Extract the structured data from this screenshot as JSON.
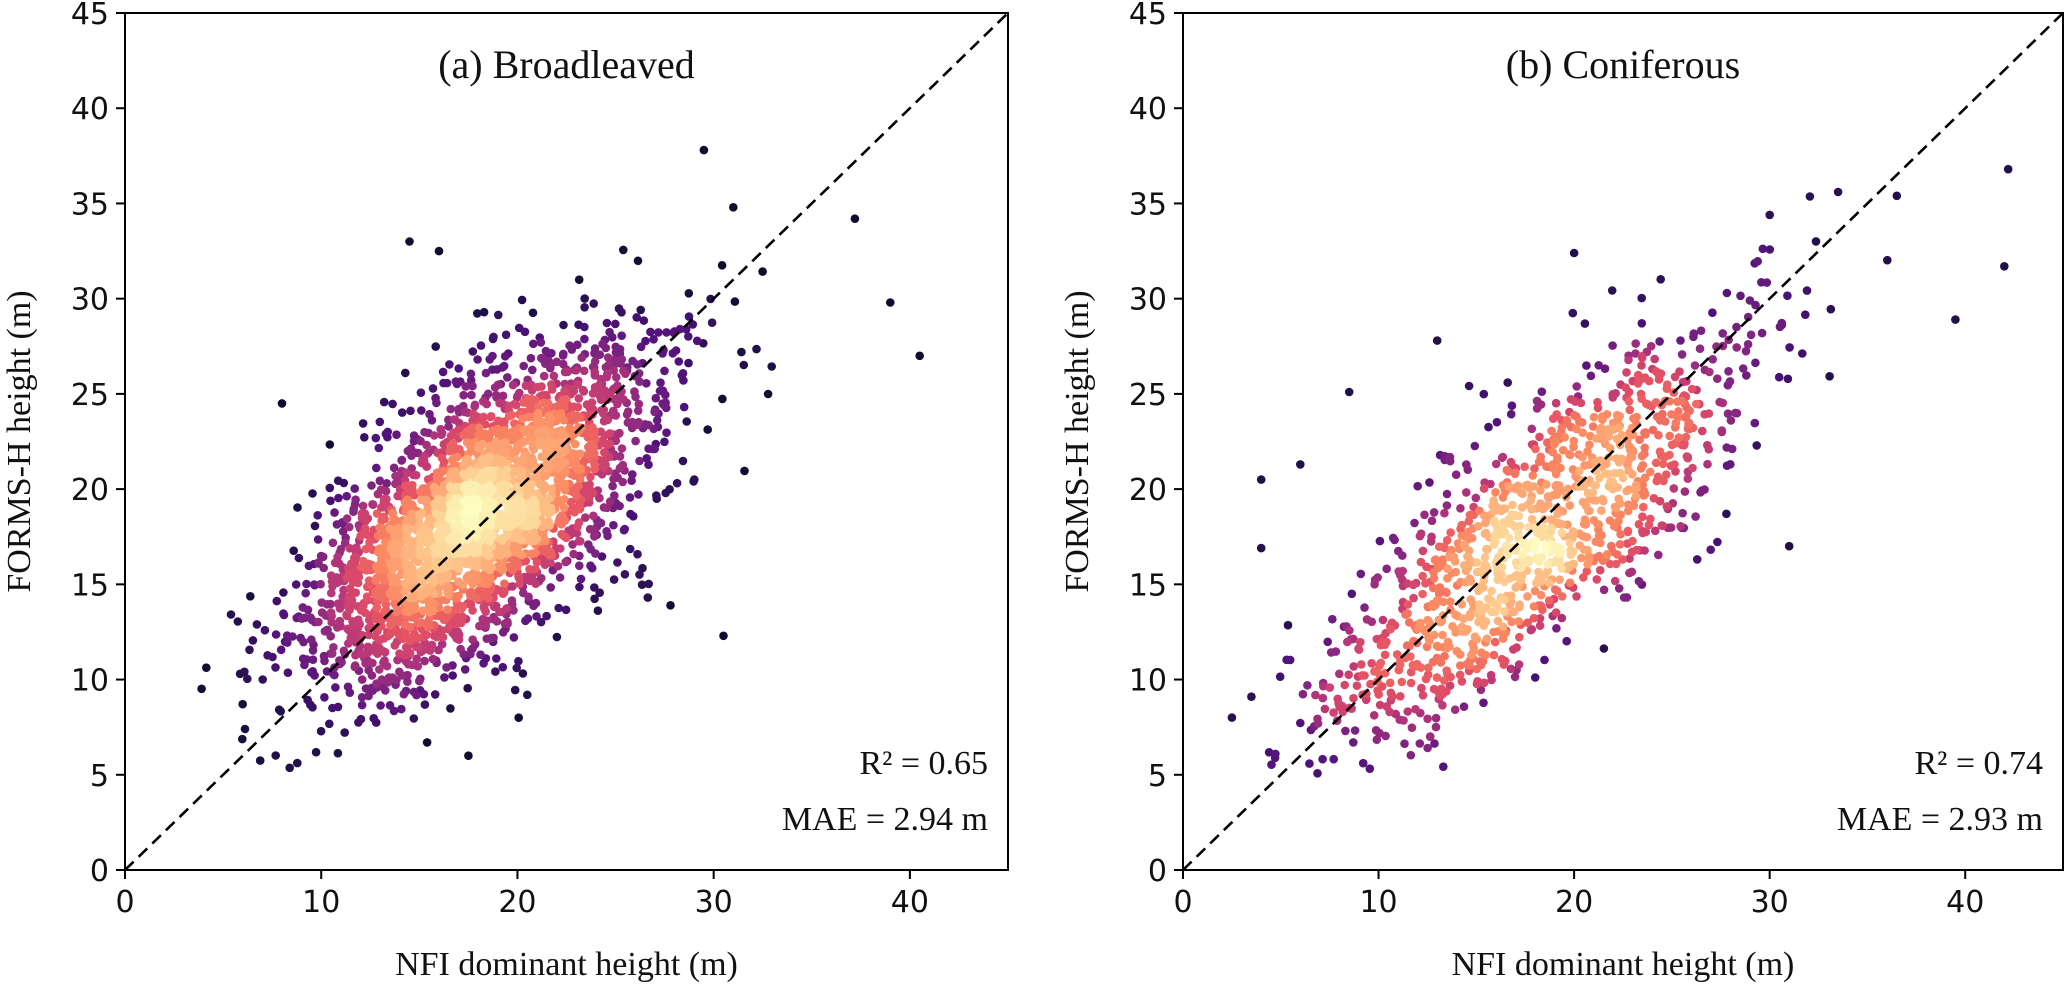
{
  "chart_data": [
    {
      "type": "scatter",
      "title": "(a)  Broadleaved",
      "xlabel": "NFI dominant height (m)",
      "ylabel": "FORMS-H height (m)",
      "xlim": [
        0,
        45
      ],
      "ylim": [
        0,
        45
      ],
      "xticks": [
        "0",
        "10",
        "20",
        "30",
        "40"
      ],
      "yticks": [
        "0",
        "5",
        "10",
        "15",
        "20",
        "25",
        "30",
        "35",
        "40",
        "45"
      ],
      "reference_line": "1:1 dashed",
      "colormap": "magma (point density)",
      "stats": [
        "R² = 0.65",
        "MAE = 2.94 m"
      ],
      "points_sampled": {
        "count": 3000,
        "center": [
          18,
          18.5
        ],
        "spread_major": 5.6,
        "spread_minor": 2.6,
        "x_range": [
          3,
          41
        ],
        "y_range": [
          5,
          38
        ]
      },
      "outliers": [
        [
          29.5,
          37.8
        ],
        [
          31,
          34.8
        ],
        [
          14.5,
          33
        ],
        [
          16,
          32.5
        ],
        [
          37.2,
          34.2
        ],
        [
          40.5,
          27
        ],
        [
          39,
          29.8
        ],
        [
          30.5,
          12.3
        ],
        [
          27.8,
          13.9
        ],
        [
          8,
          24.5
        ],
        [
          17.5,
          6
        ],
        [
          20.5,
          9.2
        ]
      ]
    },
    {
      "type": "scatter",
      "title": "(b)  Coniferous",
      "xlabel": "NFI dominant height (m)",
      "ylabel": "FORMS-H height (m)",
      "xlim": [
        0,
        45
      ],
      "ylim": [
        0,
        45
      ],
      "xticks": [
        "0",
        "10",
        "20",
        "30",
        "40"
      ],
      "yticks": [
        "0",
        "5",
        "10",
        "15",
        "20",
        "25",
        "30",
        "35",
        "40",
        "45"
      ],
      "reference_line": "1:1 dashed",
      "colormap": "magma (point density)",
      "stats": [
        "R² = 0.74",
        "MAE = 2.93 m"
      ],
      "points_sampled": {
        "count": 1200,
        "center": [
          18,
          17.5
        ],
        "spread_major": 7.5,
        "spread_minor": 2.4,
        "x_range": [
          2.5,
          43
        ],
        "y_range": [
          5,
          37
        ]
      },
      "outliers": [
        [
          42.2,
          36.8
        ],
        [
          42,
          31.7
        ],
        [
          39.5,
          28.9
        ],
        [
          4,
          20.5
        ],
        [
          4,
          16.9
        ],
        [
          6,
          21.3
        ],
        [
          20,
          32.4
        ],
        [
          30,
          34.4
        ],
        [
          33.5,
          35.6
        ],
        [
          36.5,
          35.4
        ],
        [
          31,
          17
        ],
        [
          8.5,
          25.1
        ],
        [
          13,
          27.8
        ],
        [
          3.5,
          9.1
        ],
        [
          2.5,
          8
        ]
      ]
    }
  ]
}
